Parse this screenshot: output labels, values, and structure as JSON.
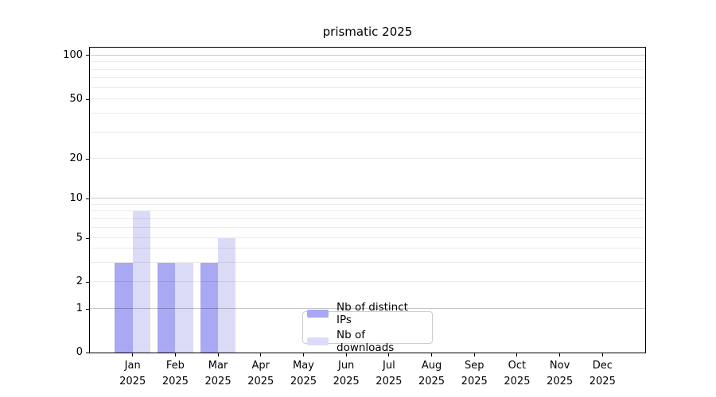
{
  "chart_data": {
    "type": "bar",
    "title": "prismatic 2025",
    "categories": [
      "Jan 2025",
      "Feb 2025",
      "Mar 2025",
      "Apr 2025",
      "May 2025",
      "Jun 2025",
      "Jul 2025",
      "Aug 2025",
      "Sep 2025",
      "Oct 2025",
      "Nov 2025",
      "Dec 2025"
    ],
    "series": [
      {
        "name": "Nb of distinct IPs",
        "color": "#a8a8f3",
        "values": [
          3,
          3,
          3,
          0,
          0,
          0,
          0,
          0,
          0,
          0,
          0,
          0
        ]
      },
      {
        "name": "Nb of downloads",
        "color": "#dbdbf8",
        "values": [
          8,
          3,
          5,
          0,
          0,
          0,
          0,
          0,
          0,
          0,
          0,
          0
        ]
      }
    ],
    "xlabel": "",
    "ylabel": "",
    "y_axis": {
      "scale": "symlog",
      "labeled_ticks": [
        0,
        1,
        2,
        5,
        10,
        20,
        50,
        100
      ],
      "tick_anchor_fracs": [
        [
          0,
          0
        ],
        [
          1,
          0.1432
        ],
        [
          2,
          0.2318
        ],
        [
          5,
          0.375
        ],
        [
          10,
          0.5052
        ],
        [
          20,
          0.6354
        ],
        [
          50,
          0.8307
        ],
        [
          100,
          0.974
        ]
      ],
      "decade_gridlines": [
        1,
        10,
        100
      ],
      "minor_gridlines": [
        2,
        3,
        4,
        5,
        6,
        7,
        8,
        9,
        20,
        30,
        40,
        50,
        60,
        70,
        80,
        90
      ]
    },
    "grid": {
      "axis": "y",
      "major_color": "rgba(0,0,0,0.22)",
      "minor_color": "rgba(0,0,0,0.08)"
    },
    "legend_position": "lower center"
  },
  "colors": {
    "background": "#ffffff",
    "spine": "#000000",
    "text": "#000000",
    "legend_border": "#cccccc"
  }
}
